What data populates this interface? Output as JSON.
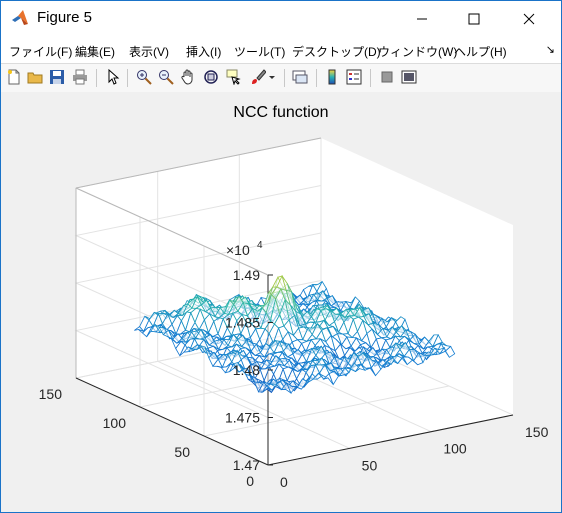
{
  "window": {
    "title": "Figure 5"
  },
  "menu": {
    "items": [
      "ファイル(F)",
      "編集(E)",
      "表示(V)",
      "挿入(I)",
      "ツール(T)",
      "デスクトップ(D)",
      "ウィンドウ(W)",
      "ヘルプ(H)"
    ],
    "overflow_glyph": "↘"
  },
  "toolbar": {
    "buttons": [
      "new-figure-icon",
      "open-file-icon",
      "save-icon",
      "print-icon",
      "edit-plot-arrow-icon",
      "zoom-in-icon",
      "zoom-out-icon",
      "pan-hand-icon",
      "rotate-3d-icon",
      "data-cursor-icon",
      "brush-icon",
      "link-plot-icon",
      "colorbar-icon",
      "legend-icon",
      "hide-plot-tools-icon",
      "show-plot-tools-icon"
    ]
  },
  "colors": {
    "window_border": "#1a73c8",
    "surface_low": "#1f4fb4",
    "surface_mid": "#2ab3b4",
    "surface_high": "#f7d43c"
  },
  "chart_data": {
    "type": "surface",
    "title": "NCC function",
    "z_exponent_label": "×10",
    "z_exponent": "4",
    "z_ticks": [
      "1.47",
      "1.475",
      "1.48",
      "1.485",
      "1.49"
    ],
    "z_tick_values": [
      14700,
      14750,
      14800,
      14850,
      14900
    ],
    "zlim": [
      14700,
      14900
    ],
    "x_ticks": [
      "0",
      "50",
      "100",
      "150"
    ],
    "x_tick_values": [
      0,
      50,
      100,
      150
    ],
    "xlim": [
      0,
      150
    ],
    "y_ticks": [
      "0",
      "50",
      "100",
      "150"
    ],
    "y_tick_values": [
      0,
      50,
      100,
      150
    ],
    "ylim": [
      0,
      150
    ],
    "xlabel": "",
    "ylabel": "",
    "zlabel": "",
    "grid": true,
    "colormap": "parula",
    "data_extent": {
      "x": [
        20,
        130
      ],
      "y": [
        20,
        130
      ]
    },
    "z_range_observed": [
      14730,
      14832
    ],
    "peak": {
      "x": 75,
      "y": 85,
      "z": 14832
    }
  }
}
